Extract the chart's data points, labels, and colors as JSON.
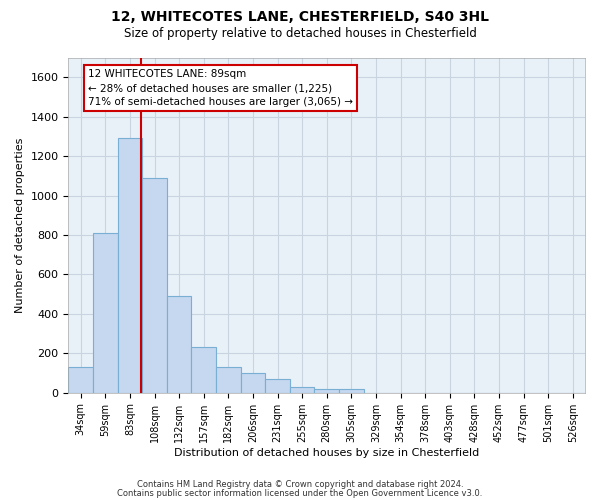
{
  "title1": "12, WHITECOTES LANE, CHESTERFIELD, S40 3HL",
  "title2": "Size of property relative to detached houses in Chesterfield",
  "xlabel": "Distribution of detached houses by size in Chesterfield",
  "ylabel": "Number of detached properties",
  "footer1": "Contains HM Land Registry data © Crown copyright and database right 2024.",
  "footer2": "Contains public sector information licensed under the Open Government Licence v3.0.",
  "categories": [
    "34sqm",
    "59sqm",
    "83sqm",
    "108sqm",
    "132sqm",
    "157sqm",
    "182sqm",
    "206sqm",
    "231sqm",
    "255sqm",
    "280sqm",
    "305sqm",
    "329sqm",
    "354sqm",
    "378sqm",
    "403sqm",
    "428sqm",
    "452sqm",
    "477sqm",
    "501sqm",
    "526sqm"
  ],
  "bar_values": [
    130,
    810,
    1290,
    1090,
    490,
    230,
    130,
    100,
    70,
    30,
    20,
    20,
    0,
    0,
    0,
    0,
    0,
    0,
    0,
    0,
    0
  ],
  "bar_color": "#c5d8ef",
  "bar_edgecolor": "#7aafd4",
  "ylim": [
    0,
    1700
  ],
  "yticks": [
    0,
    200,
    400,
    600,
    800,
    1000,
    1200,
    1400,
    1600
  ],
  "vline_x": 2.45,
  "vline_color": "#cc0000",
  "annotation_line1": "12 WHITECOTES LANE: 89sqm",
  "annotation_line2": "← 28% of detached houses are smaller (1,225)",
  "annotation_line3": "71% of semi-detached houses are larger (3,065) →",
  "annotation_box_color": "#cc0000",
  "background_color": "#ffffff",
  "plot_bg_color": "#e8f0f8",
  "grid_color": "#c8d4e0"
}
